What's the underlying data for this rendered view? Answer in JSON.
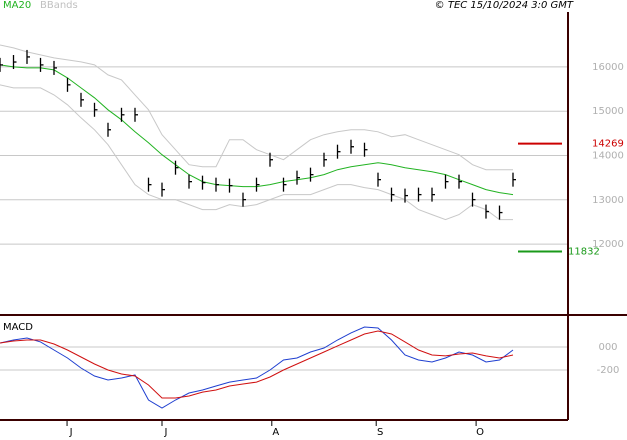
{
  "chart_data": [
    {
      "type": "stock",
      "source": "© TEC 15/10/2024 3:0 GMT",
      "x": [
        0,
        3,
        6,
        9,
        12,
        15,
        18,
        21,
        24,
        27,
        30,
        33,
        36,
        39,
        42,
        45,
        48,
        51,
        54,
        57,
        60,
        63,
        66,
        69,
        72,
        75,
        78,
        81,
        84,
        87,
        90,
        93,
        96,
        99,
        102,
        105,
        108,
        111,
        114
      ],
      "xlim": [
        0,
        126
      ],
      "xticks": [
        {
          "value": 14.9,
          "label": "J"
        },
        {
          "value": 36,
          "label": "J"
        },
        {
          "value": 60.4,
          "label": "A"
        },
        {
          "value": 83.6,
          "label": "S"
        },
        {
          "value": 105.8,
          "label": "O"
        }
      ],
      "values": [
        16045,
        16110,
        16225,
        16045,
        15977,
        15595,
        15257,
        15032,
        14581,
        14919,
        14919,
        13342,
        13230,
        13725,
        13410,
        13387,
        13342,
        13320,
        13004,
        13342,
        13905,
        13342,
        13500,
        13568,
        13905,
        14086,
        14198,
        14131,
        13455,
        13117,
        13095,
        13117,
        13117,
        13410,
        13410,
        13004,
        12734,
        12712,
        13455
      ],
      "color": "#000000",
      "series": [
        {
          "name": "MA20",
          "color": "#22b322",
          "values": [
            16045,
            16000,
            15977,
            15977,
            15932,
            15752,
            15527,
            15302,
            15032,
            14806,
            14536,
            14288,
            14018,
            13793,
            13568,
            13410,
            13343,
            13320,
            13298,
            13298,
            13343,
            13410,
            13455,
            13500,
            13568,
            13680,
            13748,
            13793,
            13838,
            13793,
            13725,
            13680,
            13635,
            13568,
            13455,
            13343,
            13230,
            13162,
            13117
          ]
        },
        {
          "name": "BBands",
          "color": "#c8c8c8",
          "upper": [
            16495,
            16428,
            16338,
            16270,
            16203,
            16158,
            16113,
            16045,
            15820,
            15707,
            15369,
            15032,
            14469,
            14131,
            13793,
            13748,
            13748,
            14356,
            14356,
            14131,
            14018,
            13906,
            14131,
            14356,
            14469,
            14536,
            14581,
            14581,
            14536,
            14424,
            14469,
            14356,
            14244,
            14131,
            14018,
            13793,
            13680,
            13680,
            13680
          ],
          "lower": [
            15595,
            15527,
            15527,
            15527,
            15369,
            15144,
            14851,
            14581,
            14244,
            13793,
            13343,
            13117,
            13005,
            13005,
            12892,
            12780,
            12780,
            12892,
            12847,
            12892,
            13005,
            13117,
            13117,
            13117,
            13230,
            13343,
            13343,
            13275,
            13230,
            13117,
            13005,
            12780,
            12667,
            12554,
            12667,
            12892,
            12780,
            12554,
            12554
          ]
        }
      ],
      "levels": [
        {
          "value": 14269,
          "color": "#cc0000"
        },
        {
          "value": 11832,
          "color": "#1a9a1a"
        }
      ],
      "ylim": [
        10400,
        17510
      ],
      "yticks": [
        12000,
        13000,
        14000,
        15000,
        16000
      ],
      "grid": true
    },
    {
      "type": "line",
      "title": "MACD",
      "series": [
        {
          "color": "#1f3fd0",
          "values": [
            35,
            61,
            78,
            44,
            -26,
            -96,
            -183,
            -252,
            -287,
            -270,
            -244,
            -461,
            -531,
            -461,
            -400,
            -374,
            -339,
            -305,
            -287,
            -270,
            -200,
            -113,
            -96,
            -44,
            -9,
            61,
            122,
            174,
            165,
            61,
            -70,
            -113,
            -131,
            -96,
            -44,
            -70,
            -131,
            -113,
            -26
          ]
        },
        {
          "color": "#d01010",
          "values": [
            35,
            52,
            61,
            61,
            26,
            -26,
            -87,
            -148,
            -200,
            -235,
            -252,
            -331,
            -444,
            -444,
            -426,
            -392,
            -374,
            -339,
            -322,
            -305,
            -261,
            -200,
            -148,
            -96,
            -44,
            9,
            61,
            113,
            139,
            113,
            44,
            -26,
            -70,
            -78,
            -61,
            -52,
            -78,
            -96,
            -70
          ]
        }
      ],
      "ylim": [
        -635,
        252
      ],
      "yticks": [
        {
          "value": 0,
          "label": "000"
        },
        -200
      ],
      "grid": true
    }
  ]
}
